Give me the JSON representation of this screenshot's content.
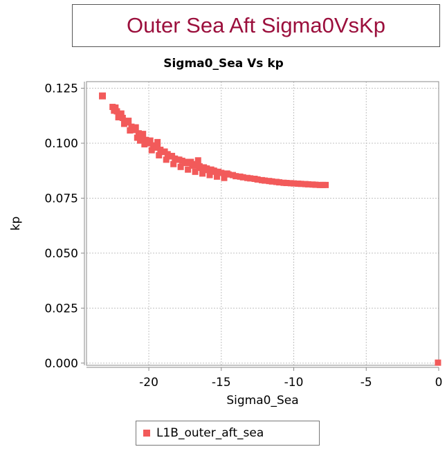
{
  "banner": {
    "title": "Outer Sea Aft Sigma0VsKp"
  },
  "chart_data": {
    "type": "scatter",
    "title": "Sigma0_Sea Vs kp",
    "xlabel": "Sigma0_Sea",
    "ylabel": "kp",
    "xlim": [
      -24.3,
      0
    ],
    "ylim": [
      -0.001,
      0.128
    ],
    "x_ticks": [
      -20,
      -15,
      -10,
      -5,
      0
    ],
    "y_ticks": [
      0.0,
      0.025,
      0.05,
      0.075,
      0.1,
      0.125
    ],
    "x_tick_labels": [
      "-20",
      "-15",
      "-10",
      "-5",
      "0"
    ],
    "y_tick_labels": [
      "0.000",
      "0.025",
      "0.050",
      "0.075",
      "0.100",
      "0.125"
    ],
    "grid": true,
    "legend_position": "bottom",
    "series": [
      {
        "name": "L1B_outer_aft_sea",
        "color": "#f25a5a",
        "x": [
          -23.2,
          -22.5,
          -22.2,
          -22.0,
          -21.8,
          -21.5,
          -21.2,
          -21.0,
          -20.7,
          -20.5,
          -20.2,
          -20.0,
          -19.7,
          -19.5,
          -19.2,
          -19.0,
          -18.7,
          -18.5,
          -18.2,
          -18.0,
          -17.7,
          -17.5,
          -17.2,
          -17.0,
          -16.7,
          -16.5,
          -16.2,
          -16.0,
          -15.7,
          -15.5,
          -15.2,
          -15.0,
          -14.7,
          -14.5,
          -14.2,
          -14.0,
          -13.7,
          -13.5,
          -13.2,
          -13.0,
          -12.7,
          -12.5,
          -12.2,
          -12.0,
          -11.7,
          -11.5,
          -11.2,
          -11.0,
          -10.7,
          -10.5,
          -10.2,
          -10.0,
          -9.7,
          -9.5,
          -9.2,
          -9.0,
          -8.7,
          -8.5,
          -8.2,
          -8.0,
          -7.8,
          -22.4,
          -22.1,
          -21.7,
          -21.3,
          -20.8,
          -20.3,
          -19.8,
          -19.3,
          -18.8,
          -18.3,
          -17.8,
          -17.3,
          -16.8,
          -16.3,
          -15.8,
          -15.3,
          -14.8,
          -22.3,
          -21.9,
          -21.4,
          -20.9,
          -20.4,
          -19.9,
          -19.4,
          -18.9,
          -18.4,
          -17.9,
          -17.4,
          -16.9,
          -16.4,
          -15.9,
          -15.4,
          -19.4,
          -20.6,
          -16.6,
          -17.1,
          -15.6,
          -14.6,
          -0.05
        ],
        "y": [
          0.1215,
          0.1165,
          0.1145,
          0.113,
          0.1115,
          0.1095,
          0.1075,
          0.106,
          0.1045,
          0.103,
          0.1015,
          0.1,
          0.099,
          0.098,
          0.097,
          0.096,
          0.095,
          0.094,
          0.093,
          0.0925,
          0.092,
          0.0915,
          0.091,
          0.0905,
          0.09,
          0.0895,
          0.089,
          0.0885,
          0.088,
          0.0875,
          0.087,
          0.0865,
          0.086,
          0.0858,
          0.0855,
          0.085,
          0.0848,
          0.0845,
          0.0842,
          0.084,
          0.0838,
          0.0835,
          0.0832,
          0.083,
          0.0828,
          0.0826,
          0.0824,
          0.0822,
          0.082,
          0.0819,
          0.0818,
          0.0817,
          0.0816,
          0.0815,
          0.0814,
          0.0813,
          0.0812,
          0.0811,
          0.081,
          0.081,
          0.081,
          0.1148,
          0.1118,
          0.1088,
          0.1058,
          0.1025,
          0.0995,
          0.0968,
          0.0945,
          0.0925,
          0.0905,
          0.0892,
          0.088,
          0.087,
          0.0862,
          0.0855,
          0.0848,
          0.0842,
          0.1162,
          0.1135,
          0.1102,
          0.1072,
          0.1042,
          0.1012,
          0.0985,
          0.0962,
          0.0942,
          0.0925,
          0.091,
          0.0898,
          0.0888,
          0.0878,
          0.087,
          0.1005,
          0.1012,
          0.0922,
          0.0915,
          0.0875,
          0.0862,
          0.0002
        ]
      }
    ]
  }
}
